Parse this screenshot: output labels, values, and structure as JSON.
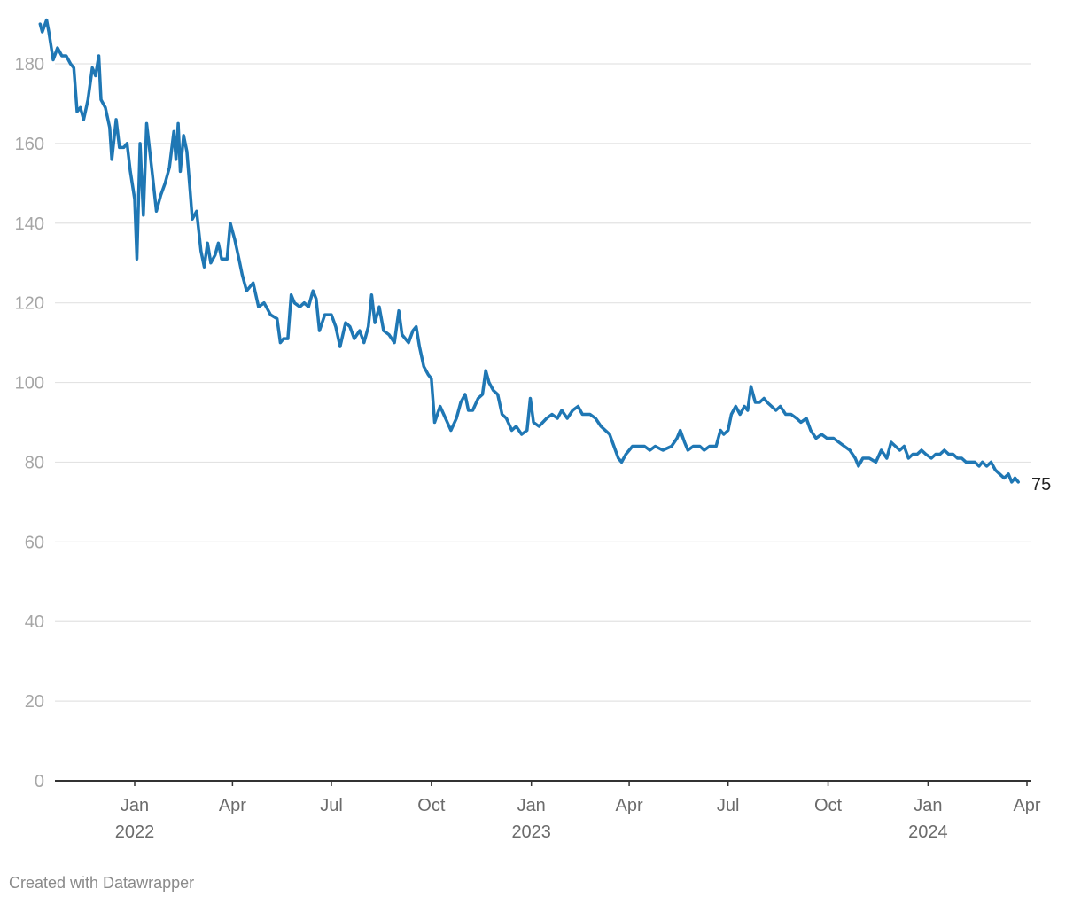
{
  "chart_data": {
    "type": "line",
    "title": "",
    "xlabel": "",
    "ylabel": "",
    "ylim": [
      0,
      190
    ],
    "yticks": [
      0,
      20,
      40,
      60,
      80,
      100,
      120,
      140,
      160,
      180
    ],
    "xlim": [
      "2021-10-01",
      "2024-04-01"
    ],
    "xticks": [
      {
        "date": "2022-01-01",
        "label": "Jan",
        "year": "2022"
      },
      {
        "date": "2022-04-01",
        "label": "Apr",
        "year": ""
      },
      {
        "date": "2022-07-01",
        "label": "Jul",
        "year": ""
      },
      {
        "date": "2022-10-01",
        "label": "Oct",
        "year": ""
      },
      {
        "date": "2023-01-01",
        "label": "Jan",
        "year": "2023"
      },
      {
        "date": "2023-04-01",
        "label": "Apr",
        "year": ""
      },
      {
        "date": "2023-07-01",
        "label": "Jul",
        "year": ""
      },
      {
        "date": "2023-10-01",
        "label": "Oct",
        "year": ""
      },
      {
        "date": "2024-01-01",
        "label": "Jan",
        "year": "2024"
      },
      {
        "date": "2024-04-01",
        "label": "Apr",
        "year": ""
      }
    ],
    "grid": true,
    "end_label": "75",
    "colors": {
      "line": "#1f77b4",
      "grid": "#e3e3e3",
      "axis": "#333333"
    },
    "series": [
      {
        "points": [
          [
            "2021-10-06",
            190
          ],
          [
            "2021-10-08",
            188
          ],
          [
            "2021-10-12",
            191
          ],
          [
            "2021-10-14",
            188
          ],
          [
            "2021-10-18",
            181
          ],
          [
            "2021-10-22",
            184
          ],
          [
            "2021-10-26",
            182
          ],
          [
            "2021-10-30",
            182
          ],
          [
            "2021-11-03",
            180
          ],
          [
            "2021-11-06",
            179
          ],
          [
            "2021-11-09",
            168
          ],
          [
            "2021-11-12",
            169
          ],
          [
            "2021-11-15",
            166
          ],
          [
            "2021-11-19",
            171
          ],
          [
            "2021-11-23",
            179
          ],
          [
            "2021-11-26",
            177
          ],
          [
            "2021-11-29",
            182
          ],
          [
            "2021-12-01",
            171
          ],
          [
            "2021-12-05",
            169
          ],
          [
            "2021-12-09",
            164
          ],
          [
            "2021-12-11",
            156
          ],
          [
            "2021-12-15",
            166
          ],
          [
            "2021-12-18",
            159
          ],
          [
            "2021-12-22",
            159
          ],
          [
            "2021-12-25",
            160
          ],
          [
            "2021-12-28",
            153
          ],
          [
            "2022-01-01",
            146
          ],
          [
            "2022-01-03",
            131
          ],
          [
            "2022-01-06",
            160
          ],
          [
            "2022-01-09",
            142
          ],
          [
            "2022-01-12",
            165
          ],
          [
            "2022-01-17",
            153
          ],
          [
            "2022-01-21",
            143
          ],
          [
            "2022-01-25",
            147
          ],
          [
            "2022-01-29",
            150
          ],
          [
            "2022-02-02",
            154
          ],
          [
            "2022-02-06",
            163
          ],
          [
            "2022-02-08",
            156
          ],
          [
            "2022-02-10",
            165
          ],
          [
            "2022-02-12",
            153
          ],
          [
            "2022-02-15",
            162
          ],
          [
            "2022-02-18",
            158
          ],
          [
            "2022-02-21",
            148
          ],
          [
            "2022-02-23",
            141
          ],
          [
            "2022-02-27",
            143
          ],
          [
            "2022-03-03",
            133
          ],
          [
            "2022-03-06",
            129
          ],
          [
            "2022-03-09",
            135
          ],
          [
            "2022-03-12",
            130
          ],
          [
            "2022-03-16",
            132
          ],
          [
            "2022-03-19",
            135
          ],
          [
            "2022-03-22",
            131
          ],
          [
            "2022-03-27",
            131
          ],
          [
            "2022-03-30",
            140
          ],
          [
            "2022-04-03",
            136
          ],
          [
            "2022-04-07",
            131
          ],
          [
            "2022-04-10",
            127
          ],
          [
            "2022-04-14",
            123
          ],
          [
            "2022-04-20",
            125
          ],
          [
            "2022-04-25",
            119
          ],
          [
            "2022-04-30",
            120
          ],
          [
            "2022-05-06",
            117
          ],
          [
            "2022-05-12",
            116
          ],
          [
            "2022-05-15",
            110
          ],
          [
            "2022-05-18",
            111
          ],
          [
            "2022-05-22",
            111
          ],
          [
            "2022-05-25",
            122
          ],
          [
            "2022-05-28",
            120
          ],
          [
            "2022-06-02",
            119
          ],
          [
            "2022-06-06",
            120
          ],
          [
            "2022-06-10",
            119
          ],
          [
            "2022-06-14",
            123
          ],
          [
            "2022-06-17",
            121
          ],
          [
            "2022-06-20",
            113
          ],
          [
            "2022-06-25",
            117
          ],
          [
            "2022-07-01",
            117
          ],
          [
            "2022-07-05",
            114
          ],
          [
            "2022-07-09",
            109
          ],
          [
            "2022-07-14",
            115
          ],
          [
            "2022-07-18",
            114
          ],
          [
            "2022-07-22",
            111
          ],
          [
            "2022-07-27",
            113
          ],
          [
            "2022-07-31",
            110
          ],
          [
            "2022-08-04",
            114
          ],
          [
            "2022-08-07",
            122
          ],
          [
            "2022-08-10",
            115
          ],
          [
            "2022-08-14",
            119
          ],
          [
            "2022-08-18",
            113
          ],
          [
            "2022-08-23",
            112
          ],
          [
            "2022-08-28",
            110
          ],
          [
            "2022-09-01",
            118
          ],
          [
            "2022-09-04",
            112
          ],
          [
            "2022-09-10",
            110
          ],
          [
            "2022-09-14",
            113
          ],
          [
            "2022-09-17",
            114
          ],
          [
            "2022-09-20",
            109
          ],
          [
            "2022-09-24",
            104
          ],
          [
            "2022-09-28",
            102
          ],
          [
            "2022-10-01",
            101
          ],
          [
            "2022-10-04",
            90
          ],
          [
            "2022-10-09",
            94
          ],
          [
            "2022-10-14",
            91
          ],
          [
            "2022-10-19",
            88
          ],
          [
            "2022-10-24",
            91
          ],
          [
            "2022-10-28",
            95
          ],
          [
            "2022-11-01",
            97
          ],
          [
            "2022-11-04",
            93
          ],
          [
            "2022-11-08",
            93
          ],
          [
            "2022-11-13",
            96
          ],
          [
            "2022-11-17",
            97
          ],
          [
            "2022-11-20",
            103
          ],
          [
            "2022-11-23",
            100
          ],
          [
            "2022-11-27",
            98
          ],
          [
            "2022-12-01",
            97
          ],
          [
            "2022-12-05",
            92
          ],
          [
            "2022-12-09",
            91
          ],
          [
            "2022-12-14",
            88
          ],
          [
            "2022-12-18",
            89
          ],
          [
            "2022-12-23",
            87
          ],
          [
            "2022-12-28",
            88
          ],
          [
            "2022-12-31",
            96
          ],
          [
            "2023-01-03",
            90
          ],
          [
            "2023-01-08",
            89
          ],
          [
            "2023-01-15",
            91
          ],
          [
            "2023-01-20",
            92
          ],
          [
            "2023-01-25",
            91
          ],
          [
            "2023-01-29",
            93
          ],
          [
            "2023-02-03",
            91
          ],
          [
            "2023-02-08",
            93
          ],
          [
            "2023-02-13",
            94
          ],
          [
            "2023-02-17",
            92
          ],
          [
            "2023-02-24",
            92
          ],
          [
            "2023-03-01",
            91
          ],
          [
            "2023-03-06",
            89
          ],
          [
            "2023-03-10",
            88
          ],
          [
            "2023-03-14",
            87
          ],
          [
            "2023-03-18",
            84
          ],
          [
            "2023-03-22",
            81
          ],
          [
            "2023-03-25",
            80
          ],
          [
            "2023-03-29",
            82
          ],
          [
            "2023-04-04",
            84
          ],
          [
            "2023-04-10",
            84
          ],
          [
            "2023-04-15",
            84
          ],
          [
            "2023-04-20",
            83
          ],
          [
            "2023-04-25",
            84
          ],
          [
            "2023-05-02",
            83
          ],
          [
            "2023-05-10",
            84
          ],
          [
            "2023-05-15",
            86
          ],
          [
            "2023-05-18",
            88
          ],
          [
            "2023-05-22",
            85
          ],
          [
            "2023-05-25",
            83
          ],
          [
            "2023-05-30",
            84
          ],
          [
            "2023-06-05",
            84
          ],
          [
            "2023-06-09",
            83
          ],
          [
            "2023-06-14",
            84
          ],
          [
            "2023-06-20",
            84
          ],
          [
            "2023-06-24",
            88
          ],
          [
            "2023-06-27",
            87
          ],
          [
            "2023-07-01",
            88
          ],
          [
            "2023-07-04",
            92
          ],
          [
            "2023-07-08",
            94
          ],
          [
            "2023-07-12",
            92
          ],
          [
            "2023-07-16",
            94
          ],
          [
            "2023-07-19",
            93
          ],
          [
            "2023-07-22",
            99
          ],
          [
            "2023-07-26",
            95
          ],
          [
            "2023-07-30",
            95
          ],
          [
            "2023-08-03",
            96
          ],
          [
            "2023-08-06",
            95
          ],
          [
            "2023-08-10",
            94
          ],
          [
            "2023-08-14",
            93
          ],
          [
            "2023-08-18",
            94
          ],
          [
            "2023-08-23",
            92
          ],
          [
            "2023-08-28",
            92
          ],
          [
            "2023-09-02",
            91
          ],
          [
            "2023-09-06",
            90
          ],
          [
            "2023-09-11",
            91
          ],
          [
            "2023-09-15",
            88
          ],
          [
            "2023-09-20",
            86
          ],
          [
            "2023-09-25",
            87
          ],
          [
            "2023-09-30",
            86
          ],
          [
            "2023-10-06",
            86
          ],
          [
            "2023-10-11",
            85
          ],
          [
            "2023-10-16",
            84
          ],
          [
            "2023-10-21",
            83
          ],
          [
            "2023-10-26",
            81
          ],
          [
            "2023-10-29",
            79
          ],
          [
            "2023-11-02",
            81
          ],
          [
            "2023-11-08",
            81
          ],
          [
            "2023-11-14",
            80
          ],
          [
            "2023-11-19",
            83
          ],
          [
            "2023-11-24",
            81
          ],
          [
            "2023-11-28",
            85
          ],
          [
            "2023-12-02",
            84
          ],
          [
            "2023-12-06",
            83
          ],
          [
            "2023-12-10",
            84
          ],
          [
            "2023-12-14",
            81
          ],
          [
            "2023-12-18",
            82
          ],
          [
            "2023-12-22",
            82
          ],
          [
            "2023-12-26",
            83
          ],
          [
            "2023-12-30",
            82
          ],
          [
            "2024-01-04",
            81
          ],
          [
            "2024-01-08",
            82
          ],
          [
            "2024-01-12",
            82
          ],
          [
            "2024-01-16",
            83
          ],
          [
            "2024-01-20",
            82
          ],
          [
            "2024-01-24",
            82
          ],
          [
            "2024-01-28",
            81
          ],
          [
            "2024-02-01",
            81
          ],
          [
            "2024-02-05",
            80
          ],
          [
            "2024-02-09",
            80
          ],
          [
            "2024-02-13",
            80
          ],
          [
            "2024-02-17",
            79
          ],
          [
            "2024-02-20",
            80
          ],
          [
            "2024-02-24",
            79
          ],
          [
            "2024-02-28",
            80
          ],
          [
            "2024-03-03",
            78
          ],
          [
            "2024-03-07",
            77
          ],
          [
            "2024-03-11",
            76
          ],
          [
            "2024-03-15",
            77
          ],
          [
            "2024-03-18",
            75
          ],
          [
            "2024-03-21",
            76
          ],
          [
            "2024-03-24",
            75
          ]
        ]
      }
    ]
  },
  "footer": {
    "credit": "Created with Datawrapper"
  }
}
